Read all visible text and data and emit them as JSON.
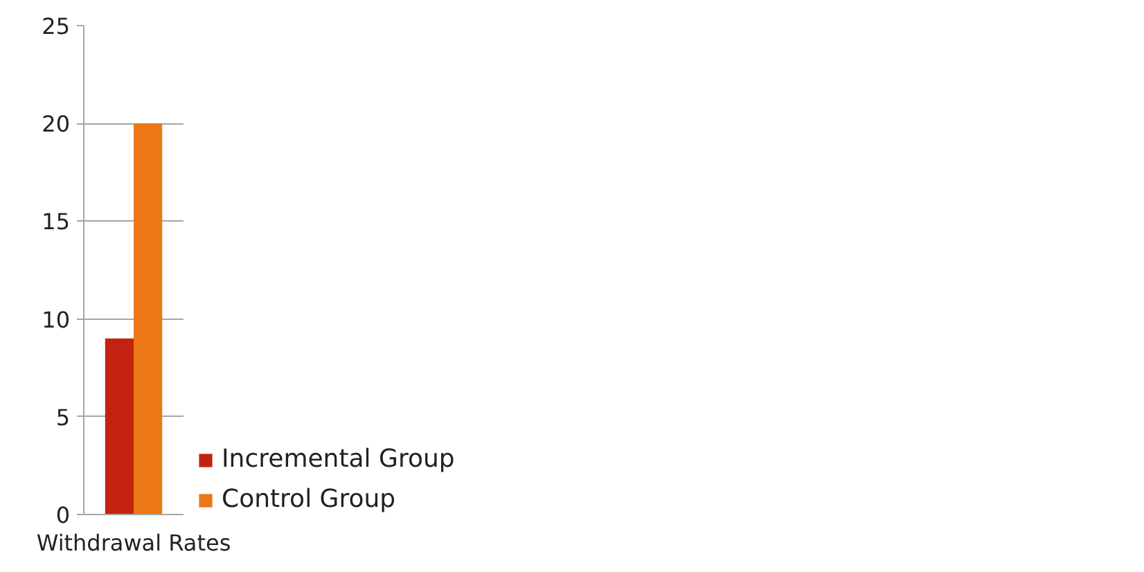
{
  "chart_data": {
    "type": "bar",
    "categories": [
      "Withdrawal Rates"
    ],
    "series": [
      {
        "name": "Incremental Group",
        "color": "#c42210",
        "values": [
          9
        ]
      },
      {
        "name": "Control Group",
        "color": "#eb7716",
        "values": [
          20
        ]
      }
    ],
    "ylim": [
      0,
      25
    ],
    "yticks": [
      0,
      5,
      10,
      15,
      20,
      25
    ],
    "grid": "y",
    "legend": "right"
  }
}
